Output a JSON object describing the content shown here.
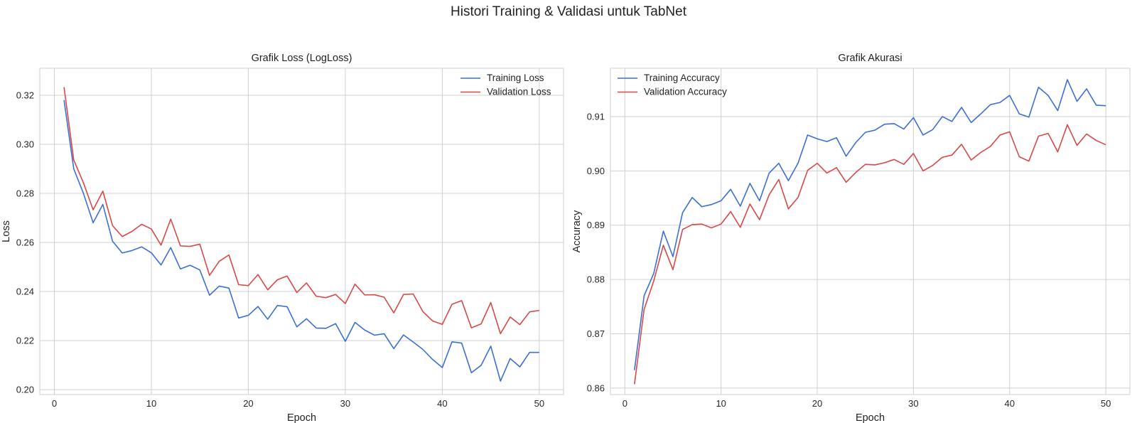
{
  "figure": {
    "suptitle": "Histori Training & Validasi untuk TabNet"
  },
  "colors": {
    "training": "#3b6fd4",
    "validation": "#d94848",
    "grid": "#d0d0d0",
    "background": "#ffffff"
  },
  "chart_data": [
    {
      "type": "line",
      "title": "Grafik Loss (LogLoss)",
      "xlabel": "Epoch",
      "ylabel": "Loss",
      "xlim": [
        -1.5,
        52.5
      ],
      "ylim": [
        0.198,
        0.331
      ],
      "xticks": [
        0,
        10,
        20,
        30,
        40,
        50
      ],
      "yticks": [
        0.2,
        0.22,
        0.24,
        0.26,
        0.28,
        0.3,
        0.32
      ],
      "ytick_labels": [
        "0.20",
        "0.22",
        "0.24",
        "0.26",
        "0.28",
        "0.30",
        "0.32"
      ],
      "grid": true,
      "legend_position": "upper-right",
      "x": [
        1,
        2,
        3,
        4,
        5,
        6,
        7,
        8,
        9,
        10,
        11,
        12,
        13,
        14,
        15,
        16,
        17,
        18,
        19,
        20,
        21,
        22,
        23,
        24,
        25,
        26,
        27,
        28,
        29,
        30,
        31,
        32,
        33,
        34,
        35,
        36,
        37,
        38,
        39,
        40,
        41,
        42,
        43,
        44,
        45,
        46,
        47,
        48,
        49,
        50
      ],
      "series": [
        {
          "name": "Training Loss",
          "color": "#3b6fd4",
          "values": [
            0.318,
            0.29,
            0.28,
            0.268,
            0.2755,
            0.2605,
            0.2557,
            0.2567,
            0.2582,
            0.2558,
            0.2508,
            0.2579,
            0.2492,
            0.2507,
            0.2488,
            0.2385,
            0.2422,
            0.2414,
            0.2292,
            0.2303,
            0.2339,
            0.2287,
            0.2343,
            0.2338,
            0.2256,
            0.2289,
            0.2251,
            0.225,
            0.2269,
            0.2197,
            0.2274,
            0.2243,
            0.2222,
            0.2228,
            0.2167,
            0.2223,
            0.2194,
            0.2164,
            0.2123,
            0.209,
            0.2195,
            0.219,
            0.2069,
            0.2099,
            0.2177,
            0.2035,
            0.2127,
            0.2093,
            0.2152,
            0.2152
          ]
        },
        {
          "name": "Validation Loss",
          "color": "#d94848",
          "values": [
            0.3233,
            0.2936,
            0.2843,
            0.2733,
            0.2809,
            0.2669,
            0.2624,
            0.2645,
            0.2674,
            0.2655,
            0.2589,
            0.2695,
            0.2586,
            0.2584,
            0.2593,
            0.2466,
            0.2523,
            0.2549,
            0.2428,
            0.2424,
            0.2469,
            0.2407,
            0.2448,
            0.2463,
            0.2396,
            0.2435,
            0.2381,
            0.2375,
            0.2388,
            0.2351,
            0.243,
            0.2386,
            0.2387,
            0.2377,
            0.2313,
            0.2388,
            0.239,
            0.2318,
            0.228,
            0.2266,
            0.2348,
            0.2363,
            0.2252,
            0.2268,
            0.2355,
            0.2228,
            0.2296,
            0.2265,
            0.2317,
            0.2323
          ]
        }
      ]
    },
    {
      "type": "line",
      "title": "Grafik Akurasi",
      "xlabel": "Epoch",
      "ylabel": "Accuracy",
      "xlim": [
        -1.5,
        52.5
      ],
      "ylim": [
        0.8588,
        0.9189
      ],
      "xticks": [
        0,
        10,
        20,
        30,
        40,
        50
      ],
      "yticks": [
        0.86,
        0.87,
        0.88,
        0.89,
        0.9,
        0.91
      ],
      "ytick_labels": [
        "0.86",
        "0.87",
        "0.88",
        "0.89",
        "0.90",
        "0.91"
      ],
      "grid": true,
      "legend_position": "upper-left",
      "x": [
        1,
        2,
        3,
        4,
        5,
        6,
        7,
        8,
        9,
        10,
        11,
        12,
        13,
        14,
        15,
        16,
        17,
        18,
        19,
        20,
        21,
        22,
        23,
        24,
        25,
        26,
        27,
        28,
        29,
        30,
        31,
        32,
        33,
        34,
        35,
        36,
        37,
        38,
        39,
        40,
        41,
        42,
        43,
        44,
        45,
        46,
        47,
        48,
        49,
        50
      ],
      "series": [
        {
          "name": "Training Accuracy",
          "color": "#3b6fd4",
          "values": [
            0.8633,
            0.877,
            0.8811,
            0.8889,
            0.8842,
            0.8923,
            0.8951,
            0.8934,
            0.8938,
            0.8945,
            0.8966,
            0.8935,
            0.8977,
            0.8945,
            0.8996,
            0.9014,
            0.8982,
            0.9014,
            0.9066,
            0.9059,
            0.9054,
            0.9061,
            0.9027,
            0.9052,
            0.9071,
            0.9075,
            0.9086,
            0.9087,
            0.9077,
            0.9098,
            0.9066,
            0.9076,
            0.91,
            0.9091,
            0.9117,
            0.9089,
            0.9105,
            0.9122,
            0.9126,
            0.9139,
            0.9105,
            0.9099,
            0.9154,
            0.9139,
            0.9111,
            0.9168,
            0.9128,
            0.9151,
            0.9121,
            0.912
          ]
        },
        {
          "name": "Validation Accuracy",
          "color": "#d94848",
          "values": [
            0.8607,
            0.8745,
            0.8797,
            0.8863,
            0.8818,
            0.8892,
            0.8901,
            0.8902,
            0.8895,
            0.8902,
            0.8925,
            0.8896,
            0.8939,
            0.891,
            0.8956,
            0.8984,
            0.893,
            0.8951,
            0.9001,
            0.9014,
            0.8996,
            0.9006,
            0.8979,
            0.8997,
            0.9012,
            0.9011,
            0.9015,
            0.9021,
            0.9012,
            0.9032,
            0.9,
            0.901,
            0.9025,
            0.9029,
            0.9049,
            0.902,
            0.9034,
            0.9045,
            0.9066,
            0.9072,
            0.9026,
            0.9018,
            0.9064,
            0.9069,
            0.9035,
            0.9085,
            0.9047,
            0.9068,
            0.9056,
            0.9048
          ]
        }
      ]
    }
  ]
}
